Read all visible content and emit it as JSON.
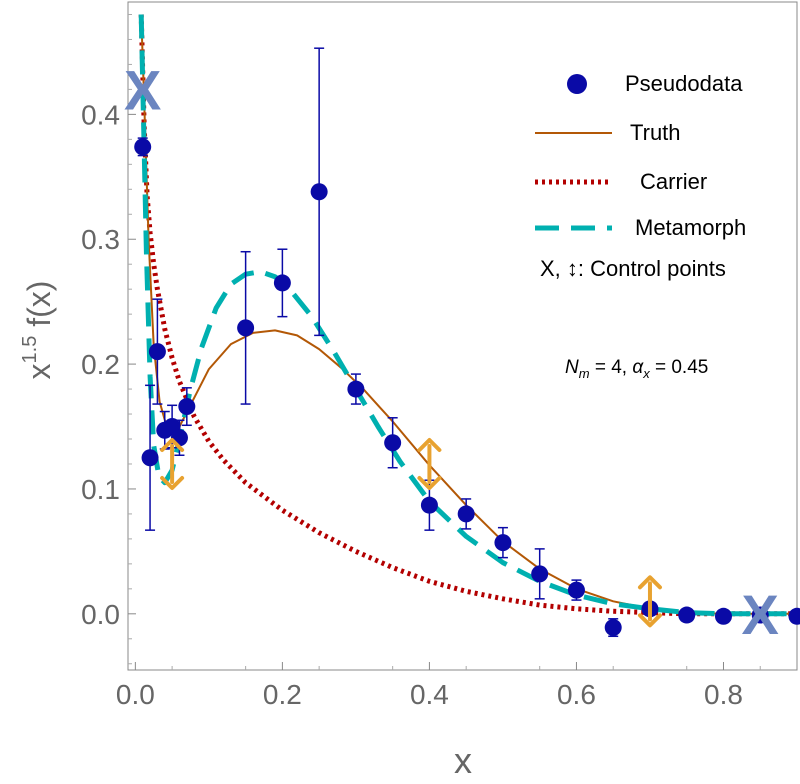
{
  "chart_data": {
    "type": "scatter",
    "title": "",
    "xlabel": "x",
    "ylabel": {
      "base": "x",
      "exponent": "1.5",
      "rest": " f(x)"
    },
    "xlim": [
      -0.01,
      0.9
    ],
    "ylim": [
      -0.045,
      0.49
    ],
    "xticks": [
      {
        "value": 0.0,
        "label": "0.0"
      },
      {
        "value": 0.2,
        "label": "0.2"
      },
      {
        "value": 0.4,
        "label": "0.4"
      },
      {
        "value": 0.6,
        "label": "0.6"
      },
      {
        "value": 0.8,
        "label": "0.8"
      }
    ],
    "yticks": [
      {
        "value": 0.0,
        "label": "0.0"
      },
      {
        "value": 0.1,
        "label": "0.1"
      },
      {
        "value": 0.2,
        "label": "0.2"
      },
      {
        "value": 0.3,
        "label": "0.3"
      },
      {
        "value": 0.4,
        "label": "0.4"
      }
    ],
    "series": [
      {
        "name": "Pseudodata",
        "kind": "points",
        "color": "#0a0aa6",
        "points": [
          {
            "x": 0.01,
            "y": 0.374,
            "err": 0.007
          },
          {
            "x": 0.02,
            "y": 0.125,
            "err": 0.058
          },
          {
            "x": 0.03,
            "y": 0.21,
            "err": 0.042
          },
          {
            "x": 0.04,
            "y": 0.147,
            "err": 0.015
          },
          {
            "x": 0.05,
            "y": 0.15,
            "err": 0.017
          },
          {
            "x": 0.06,
            "y": 0.141,
            "err": 0.014
          },
          {
            "x": 0.07,
            "y": 0.166,
            "err": 0.015
          },
          {
            "x": 0.15,
            "y": 0.229,
            "err": 0.061
          },
          {
            "x": 0.2,
            "y": 0.265,
            "err": 0.027
          },
          {
            "x": 0.25,
            "y": 0.338,
            "err": 0.115
          },
          {
            "x": 0.3,
            "y": 0.18,
            "err": 0.012
          },
          {
            "x": 0.35,
            "y": 0.137,
            "err": 0.02
          },
          {
            "x": 0.4,
            "y": 0.087,
            "err": 0.02
          },
          {
            "x": 0.45,
            "y": 0.08,
            "err": 0.012
          },
          {
            "x": 0.5,
            "y": 0.057,
            "err": 0.012
          },
          {
            "x": 0.55,
            "y": 0.032,
            "err": 0.02
          },
          {
            "x": 0.6,
            "y": 0.019,
            "err": 0.008
          },
          {
            "x": 0.65,
            "y": -0.011,
            "err": 0.007
          },
          {
            "x": 0.7,
            "y": 0.004,
            "err": 0.003
          },
          {
            "x": 0.75,
            "y": -0.001,
            "err": 0.002
          },
          {
            "x": 0.8,
            "y": -0.002,
            "err": 0.001
          },
          {
            "x": 0.85,
            "y": -0.001,
            "err": 0.001
          },
          {
            "x": 0.9,
            "y": -0.002,
            "err": 0.001
          }
        ]
      },
      {
        "name": "Truth",
        "kind": "line",
        "color": "#b35806",
        "style": "solid",
        "x": [
          0.008,
          0.012,
          0.018,
          0.025,
          0.033,
          0.045,
          0.06,
          0.08,
          0.1,
          0.13,
          0.16,
          0.19,
          0.22,
          0.25,
          0.28,
          0.31,
          0.35,
          0.4,
          0.45,
          0.5,
          0.55,
          0.6,
          0.65,
          0.7,
          0.75,
          0.8,
          0.85,
          0.9
        ],
        "y": [
          0.48,
          0.41,
          0.3,
          0.215,
          0.17,
          0.145,
          0.15,
          0.173,
          0.196,
          0.216,
          0.225,
          0.227,
          0.223,
          0.212,
          0.197,
          0.18,
          0.154,
          0.119,
          0.087,
          0.058,
          0.036,
          0.02,
          0.01,
          0.004,
          0.001,
          0.0,
          0.0,
          0.0
        ]
      },
      {
        "name": "Carrier",
        "kind": "line",
        "color": "#b30000",
        "style": "dotted",
        "x": [
          0.008,
          0.012,
          0.016,
          0.02,
          0.025,
          0.03,
          0.04,
          0.05,
          0.06,
          0.08,
          0.1,
          0.12,
          0.15,
          0.2,
          0.25,
          0.3,
          0.35,
          0.4,
          0.45,
          0.5,
          0.55,
          0.6,
          0.65,
          0.7,
          0.75,
          0.8,
          0.85,
          0.9
        ],
        "y": [
          0.48,
          0.39,
          0.335,
          0.305,
          0.28,
          0.26,
          0.228,
          0.205,
          0.186,
          0.158,
          0.138,
          0.123,
          0.105,
          0.083,
          0.065,
          0.05,
          0.037,
          0.026,
          0.018,
          0.012,
          0.007,
          0.004,
          0.002,
          0.001,
          0.0,
          0.0,
          0.0,
          0.0
        ]
      },
      {
        "name": "Metamorph",
        "kind": "line",
        "color": "#00b0b0",
        "style": "dashed",
        "x": [
          0.008,
          0.011,
          0.015,
          0.02,
          0.025,
          0.032,
          0.04,
          0.05,
          0.06,
          0.075,
          0.09,
          0.11,
          0.13,
          0.15,
          0.17,
          0.19,
          0.21,
          0.24,
          0.27,
          0.3,
          0.33,
          0.36,
          0.4,
          0.45,
          0.5,
          0.55,
          0.6,
          0.65,
          0.7,
          0.75,
          0.8,
          0.85,
          0.9
        ],
        "y": [
          0.48,
          0.4,
          0.29,
          0.19,
          0.135,
          0.11,
          0.105,
          0.115,
          0.14,
          0.18,
          0.213,
          0.245,
          0.264,
          0.272,
          0.274,
          0.27,
          0.26,
          0.238,
          0.21,
          0.18,
          0.15,
          0.122,
          0.09,
          0.062,
          0.041,
          0.026,
          0.015,
          0.008,
          0.004,
          0.001,
          0.0,
          0.0,
          0.0
        ]
      }
    ],
    "control_points": {
      "x_markers": [
        {
          "x": 0.01,
          "y": 0.42
        },
        {
          "x": 0.85,
          "y": 0.0
        }
      ],
      "arrows": [
        {
          "x": 0.05,
          "y": 0.12
        },
        {
          "x": 0.4,
          "y": 0.12
        },
        {
          "x": 0.7,
          "y": 0.01
        }
      ],
      "x_marker_label": "X",
      "x_color": "#6b85c0",
      "arrow_color": "#e8a230"
    },
    "legend": {
      "position": "top-right",
      "entries": [
        {
          "label": "Pseudodata",
          "marker": "point"
        },
        {
          "label": "Truth",
          "marker": "solid"
        },
        {
          "label": "Carrier",
          "marker": "dotted"
        },
        {
          "label": "Metamorph",
          "marker": "dashed"
        }
      ],
      "control_points_label": "X, ↕: Control points"
    },
    "annotation": {
      "nm_symbol": "N",
      "nm_sub": "m",
      "nm_value": " = 4, ",
      "alpha_symbol": "α",
      "alpha_sub": "x",
      "alpha_value": " = 0.45"
    }
  }
}
